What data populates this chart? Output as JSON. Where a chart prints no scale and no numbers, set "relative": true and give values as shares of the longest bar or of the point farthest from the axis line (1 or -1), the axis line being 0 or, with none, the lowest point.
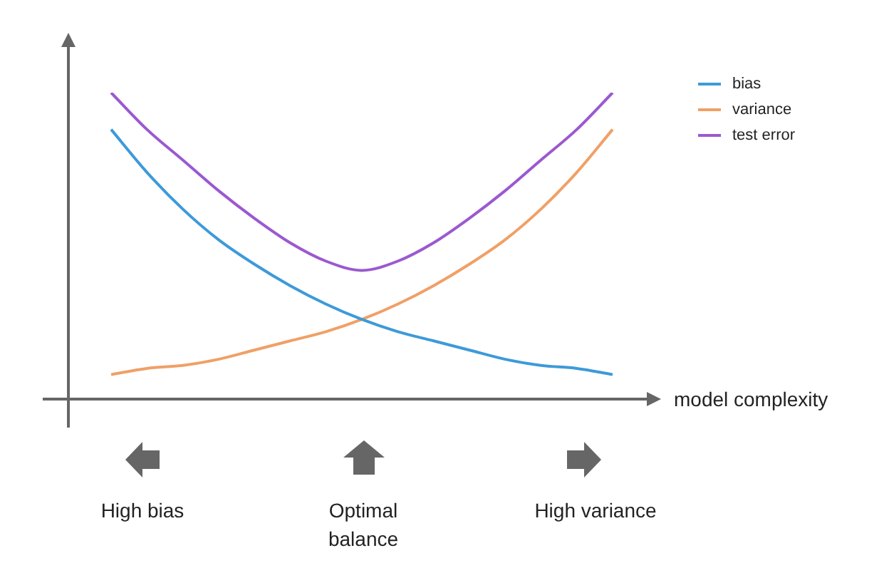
{
  "chart_data": {
    "type": "line",
    "relative": true,
    "xlabel": "model complexity",
    "legend": "top right",
    "marker": "none",
    "line_style": "solid",
    "categories": [
      null,
      null,
      null,
      null,
      null,
      null,
      null,
      null,
      null,
      null,
      null,
      null,
      null,
      null,
      null
    ],
    "series": [
      {
        "name": "bias",
        "color": "#3d9ad9",
        "values": [
          0.88,
          0.74,
          0.62,
          0.52,
          0.44,
          0.37,
          0.31,
          0.26,
          0.22,
          0.19,
          0.16,
          0.13,
          0.11,
          0.1,
          0.08
        ]
      },
      {
        "name": "variance",
        "color": "#f0a066",
        "values": [
          0.08,
          0.1,
          0.11,
          0.13,
          0.16,
          0.19,
          0.22,
          0.26,
          0.31,
          0.37,
          0.44,
          0.52,
          0.62,
          0.74,
          0.88
        ]
      },
      {
        "name": "test error",
        "color": "#9b59d0",
        "values": [
          1.0,
          0.88,
          0.78,
          0.68,
          0.59,
          0.51,
          0.45,
          0.42,
          0.45,
          0.51,
          0.59,
          0.68,
          0.78,
          0.88,
          1.0
        ]
      }
    ],
    "annotations": [
      "High bias",
      "Optimal balance",
      "High variance"
    ]
  }
}
